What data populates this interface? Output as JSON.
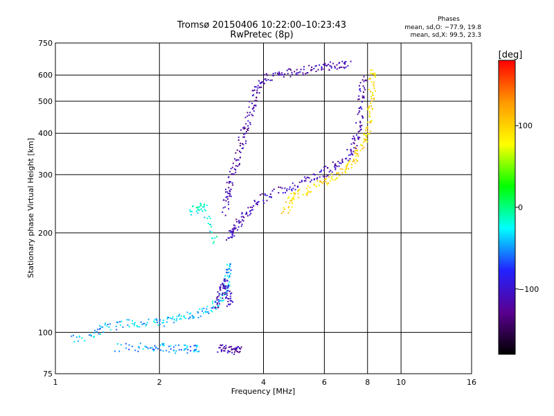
{
  "chart_data": {
    "type": "scatter",
    "title": "Tromsø 20150406 10:22:00–10:23:43",
    "subtitle": "RwPretec (8p)",
    "xlabel": "Frequency [MHz]",
    "ylabel": "Stationary phase Virtual Height [km]",
    "x_scale": "log",
    "y_scale": "log",
    "xlim": [
      1,
      16
    ],
    "ylim": [
      75,
      750
    ],
    "x_ticks": [
      {
        "value": 1,
        "label": "1"
      },
      {
        "value": 2,
        "label": "2"
      },
      {
        "value": 4,
        "label": "4"
      },
      {
        "value": 6,
        "label": "6"
      },
      {
        "value": 8,
        "label": "8"
      },
      {
        "value": 10,
        "label": "10"
      },
      {
        "value": 16,
        "label": "16"
      }
    ],
    "y_ticks": [
      {
        "value": 75,
        "label": "75"
      },
      {
        "value": 100,
        "label": "100"
      },
      {
        "value": 200,
        "label": "200"
      },
      {
        "value": 300,
        "label": "300"
      },
      {
        "value": 400,
        "label": "400"
      },
      {
        "value": 500,
        "label": "500"
      },
      {
        "value": 600,
        "label": "600"
      },
      {
        "value": 750,
        "label": "750"
      }
    ],
    "grid": true,
    "annotation": {
      "title": "Phases",
      "line1": "mean, sd,O: −77.9, 19.8",
      "line2": "mean, sd,X:  99.5, 23.3"
    },
    "colorbar": {
      "label": "[deg]",
      "range": [
        -180,
        180
      ],
      "ticks": [
        {
          "value": 100,
          "label": "100"
        },
        {
          "value": 0,
          "label": "0"
        },
        {
          "value": -100,
          "label": "−100"
        }
      ],
      "colors": [
        "#000000",
        "#5a0090",
        "#2222ff",
        "#00ffff",
        "#00ff00",
        "#ffff00",
        "#ff9900",
        "#ff0000"
      ]
    },
    "traces": [
      {
        "phase": -110,
        "points": [
          [
            3.2,
            195
          ],
          [
            3.25,
            200
          ],
          [
            3.35,
            210
          ],
          [
            3.5,
            225
          ],
          [
            3.7,
            240
          ],
          [
            4.0,
            255
          ],
          [
            4.5,
            268
          ],
          [
            5.0,
            280
          ],
          [
            5.5,
            292
          ],
          [
            6.0,
            305
          ],
          [
            6.5,
            320
          ],
          [
            7.0,
            340
          ],
          [
            7.3,
            365
          ],
          [
            7.5,
            400
          ],
          [
            7.6,
            450
          ],
          [
            7.7,
            520
          ],
          [
            7.75,
            580
          ]
        ]
      },
      {
        "phase": -115,
        "points": [
          [
            3.1,
            230
          ],
          [
            3.15,
            260
          ],
          [
            3.2,
            280
          ],
          [
            3.3,
            310
          ],
          [
            3.4,
            350
          ],
          [
            3.5,
            390
          ],
          [
            3.6,
            430
          ],
          [
            3.7,
            480
          ],
          [
            3.8,
            530
          ],
          [
            3.9,
            570
          ],
          [
            4.2,
            595
          ],
          [
            4.6,
            605
          ],
          [
            5.0,
            615
          ],
          [
            5.5,
            625
          ],
          [
            6.0,
            635
          ],
          [
            6.5,
            640
          ],
          [
            7.0,
            645
          ]
        ]
      },
      {
        "phase": 95,
        "points": [
          [
            4.6,
            232
          ],
          [
            4.8,
            250
          ],
          [
            5.0,
            262
          ],
          [
            5.5,
            272
          ],
          [
            6.0,
            285
          ],
          [
            6.5,
            298
          ],
          [
            7.0,
            318
          ],
          [
            7.3,
            335
          ],
          [
            7.6,
            360
          ],
          [
            7.9,
            390
          ],
          [
            8.1,
            430
          ],
          [
            8.2,
            490
          ],
          [
            8.25,
            560
          ],
          [
            8.3,
            620
          ]
        ]
      },
      {
        "phase": -40,
        "points": [
          [
            1.1,
            95
          ],
          [
            1.3,
            98
          ],
          [
            1.4,
            104
          ],
          [
            1.6,
            106
          ],
          [
            1.8,
            107
          ],
          [
            2.0,
            107
          ],
          [
            2.2,
            109
          ],
          [
            2.4,
            111
          ],
          [
            2.6,
            114
          ],
          [
            2.8,
            118
          ],
          [
            3.0,
            125
          ],
          [
            3.1,
            135
          ],
          [
            3.15,
            148
          ],
          [
            3.2,
            160
          ]
        ]
      },
      {
        "phase": -110,
        "points": [
          [
            2.9,
            118
          ],
          [
            3.0,
            128
          ],
          [
            3.05,
            138
          ],
          [
            3.1,
            142
          ],
          [
            3.15,
            130
          ],
          [
            3.2,
            122
          ]
        ]
      },
      {
        "phase": -50,
        "points": [
          [
            1.5,
            90
          ],
          [
            1.8,
            90
          ],
          [
            2.0,
            90
          ],
          [
            2.2,
            89
          ],
          [
            2.4,
            89
          ],
          [
            2.6,
            90
          ]
        ]
      },
      {
        "phase": -115,
        "points": [
          [
            3.0,
            89
          ],
          [
            3.1,
            89
          ],
          [
            3.3,
            88
          ],
          [
            3.4,
            89
          ]
        ]
      },
      {
        "phase": -20,
        "points": [
          [
            2.5,
            230
          ],
          [
            2.6,
            240
          ],
          [
            2.7,
            235
          ],
          [
            2.9,
            190
          ]
        ]
      }
    ]
  }
}
